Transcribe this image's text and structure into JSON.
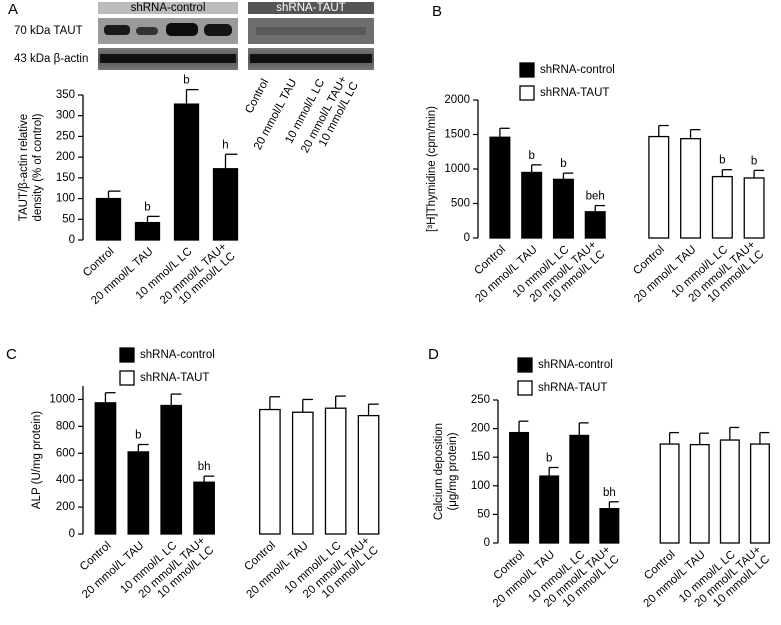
{
  "chart_data": [
    {
      "type": "bar",
      "panel": "A",
      "blot": {
        "headers": [
          "shRNA-control",
          "shRNA-TAUT"
        ],
        "rows": [
          "70 kDa TAUT",
          "43 kDa β-actin"
        ]
      },
      "ylabel": [
        "TAUT/β-actin relative",
        "density (% of control)"
      ],
      "categories": [
        "Control",
        "20 mmol/L TAU",
        "10 mmol/L LC",
        "20 mmol/L TAU+\n10 mmol/L LC"
      ],
      "values": [
        100,
        42,
        328,
        172
      ],
      "errors": [
        18,
        15,
        35,
        35
      ],
      "annotations": [
        null,
        "b",
        "b",
        "h"
      ],
      "color": "#000000",
      "ylim": [
        0,
        350
      ],
      "yticks": [
        0,
        50,
        100,
        150,
        200,
        250,
        300,
        350
      ]
    },
    {
      "type": "bar",
      "panel": "B",
      "ylabel": [
        "[³H]Thymidine (cpm/min)"
      ],
      "categories": [
        "Control",
        "20 mmol/L TAU",
        "10 mmol/L LC",
        "20 mmol/L TAU+\n10 mmol/L LC"
      ],
      "series": [
        {
          "name": "shRNA-control",
          "color": "#000000",
          "values": [
            1460,
            950,
            850,
            380
          ],
          "errors": [
            130,
            110,
            90,
            90
          ],
          "annotations": [
            null,
            "b",
            "b",
            "beh"
          ]
        },
        {
          "name": "shRNA-TAUT",
          "color": "#ffffff",
          "values": [
            1470,
            1440,
            890,
            870
          ],
          "errors": [
            160,
            130,
            100,
            110
          ],
          "annotations": [
            null,
            null,
            "b",
            "b"
          ]
        }
      ],
      "ylim": [
        0,
        2000
      ],
      "yticks": [
        0,
        500,
        1000,
        1500,
        2000
      ]
    },
    {
      "type": "bar",
      "panel": "C",
      "ylabel": [
        "ALP (U/mg protein)"
      ],
      "categories": [
        "Control",
        "20 mmol/L TAU",
        "10 mmol/L LC",
        "20 mmol/L TAU+\n10 mmol/L LC"
      ],
      "series": [
        {
          "name": "shRNA-control",
          "color": "#000000",
          "values": [
            975,
            610,
            955,
            385
          ],
          "errors": [
            75,
            55,
            85,
            45
          ],
          "annotations": [
            null,
            "b",
            null,
            "bh"
          ]
        },
        {
          "name": "shRNA-TAUT",
          "color": "#ffffff",
          "values": [
            925,
            905,
            935,
            880
          ],
          "errors": [
            95,
            95,
            90,
            85
          ],
          "annotations": [
            null,
            null,
            null,
            null
          ]
        }
      ],
      "ylim": [
        0,
        1100
      ],
      "yticks": [
        0,
        200,
        400,
        600,
        800,
        1000
      ]
    },
    {
      "type": "bar",
      "panel": "D",
      "ylabel": [
        "Calcium deposition",
        "(μg/mg protein)"
      ],
      "categories": [
        "Control",
        "20 mmol/L TAU",
        "10 mmol/L LC",
        "20 mmol/L TAU+\n10 mmol/L LC"
      ],
      "series": [
        {
          "name": "shRNA-control",
          "color": "#000000",
          "values": [
            193,
            117,
            188,
            60
          ],
          "errors": [
            20,
            15,
            22,
            12
          ],
          "annotations": [
            null,
            "b",
            null,
            "bh"
          ]
        },
        {
          "name": "shRNA-TAUT",
          "color": "#ffffff",
          "values": [
            173,
            172,
            180,
            173
          ],
          "errors": [
            20,
            20,
            22,
            20
          ],
          "annotations": [
            null,
            null,
            null,
            null
          ]
        }
      ],
      "ylim": [
        0,
        250
      ],
      "yticks": [
        0,
        50,
        100,
        150,
        200,
        250
      ]
    }
  ]
}
